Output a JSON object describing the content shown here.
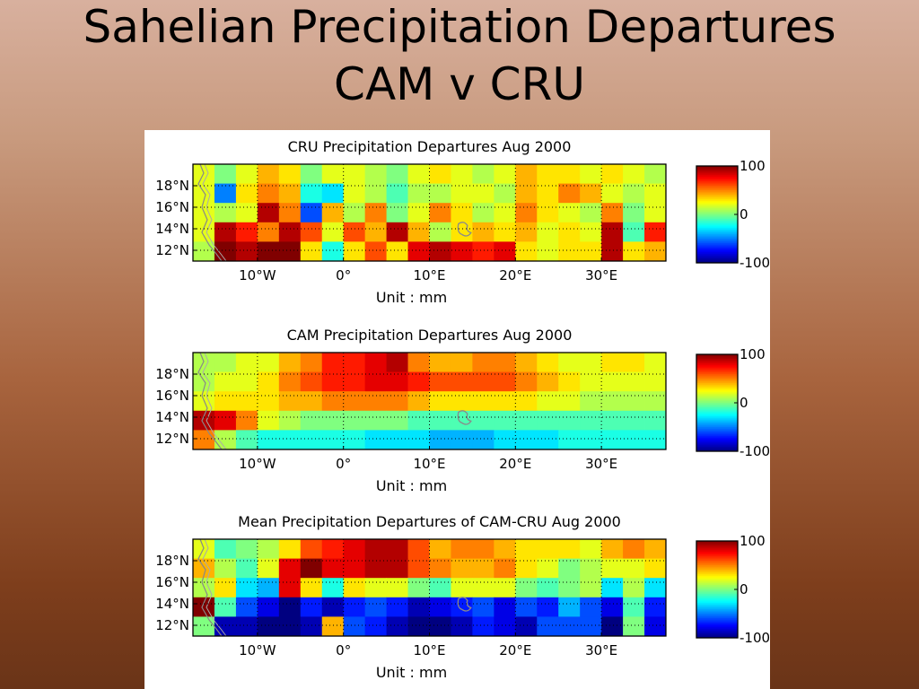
{
  "slide": {
    "title_line1": "Sahelian Precipitation Departures",
    "title_line2": "CAM v CRU"
  },
  "chart_data": [
    {
      "type": "heatmap",
      "title": "CRU Precipitation Departures  Aug 2000",
      "xlabel": "Unit : mm",
      "x_ticks": [
        "10°W",
        "0°",
        "10°E",
        "20°E",
        "30°E"
      ],
      "x_tick_values": [
        -10,
        0,
        10,
        20,
        30
      ],
      "y_ticks": [
        "18°N",
        "16°N",
        "14°N",
        "12°N"
      ],
      "y_tick_values": [
        18,
        16,
        14,
        12
      ],
      "xlim": [
        -17.5,
        37.5
      ],
      "ylim": [
        11,
        20
      ],
      "colorbar": {
        "min": -100,
        "max": 100,
        "ticks": [
          "100",
          "0",
          "-100"
        ]
      },
      "grid": true,
      "values": [
        [
          20,
          0,
          20,
          40,
          30,
          0,
          20,
          20,
          10,
          0,
          20,
          30,
          20,
          10,
          20,
          40,
          30,
          30,
          20,
          30,
          20,
          10
        ],
        [
          20,
          -50,
          30,
          50,
          40,
          -20,
          -30,
          20,
          10,
          -10,
          10,
          10,
          20,
          20,
          10,
          40,
          30,
          50,
          40,
          20,
          10,
          20
        ],
        [
          20,
          10,
          20,
          90,
          50,
          -60,
          40,
          10,
          50,
          0,
          20,
          50,
          30,
          10,
          20,
          50,
          30,
          20,
          10,
          50,
          0,
          20
        ],
        [
          20,
          90,
          70,
          50,
          90,
          60,
          20,
          60,
          40,
          90,
          40,
          10,
          30,
          40,
          30,
          40,
          20,
          30,
          20,
          90,
          -10,
          70
        ],
        [
          10,
          100,
          90,
          100,
          100,
          30,
          -20,
          30,
          60,
          30,
          80,
          90,
          80,
          70,
          80,
          30,
          20,
          30,
          30,
          90,
          30,
          40
        ]
      ]
    },
    {
      "type": "heatmap",
      "title": "CAM Precipitation Departures  Aug 2000",
      "xlabel": "Unit : mm",
      "x_ticks": [
        "10°W",
        "0°",
        "10°E",
        "20°E",
        "30°E"
      ],
      "x_tick_values": [
        -10,
        0,
        10,
        20,
        30
      ],
      "y_ticks": [
        "18°N",
        "16°N",
        "14°N",
        "12°N"
      ],
      "y_tick_values": [
        18,
        16,
        14,
        12
      ],
      "xlim": [
        -17.5,
        37.5
      ],
      "ylim": [
        11,
        20
      ],
      "colorbar": {
        "min": -100,
        "max": 100,
        "ticks": [
          "100",
          "0",
          "-100"
        ]
      },
      "grid": true,
      "values": [
        [
          10,
          10,
          20,
          20,
          40,
          50,
          70,
          70,
          80,
          90,
          50,
          40,
          40,
          50,
          50,
          40,
          30,
          20,
          20,
          30,
          30,
          20
        ],
        [
          10,
          20,
          20,
          30,
          50,
          60,
          70,
          70,
          80,
          80,
          70,
          60,
          60,
          60,
          60,
          50,
          40,
          30,
          20,
          20,
          20,
          20
        ],
        [
          20,
          30,
          30,
          30,
          40,
          40,
          50,
          50,
          50,
          50,
          40,
          30,
          30,
          30,
          30,
          30,
          20,
          20,
          10,
          10,
          10,
          10
        ],
        [
          90,
          80,
          50,
          20,
          10,
          0,
          0,
          0,
          0,
          0,
          -10,
          -10,
          -10,
          -10,
          -10,
          -10,
          -10,
          -10,
          -10,
          -10,
          -10,
          -10
        ],
        [
          50,
          10,
          -10,
          -20,
          -20,
          -20,
          -20,
          -20,
          -30,
          -30,
          -30,
          -40,
          -40,
          -40,
          -30,
          -30,
          -30,
          -20,
          -20,
          -20,
          -20,
          -20
        ]
      ]
    },
    {
      "type": "heatmap",
      "title": "Mean Precipitation Departures of CAM-CRU  Aug 2000",
      "xlabel": "Unit : mm",
      "x_ticks": [
        "10°W",
        "0°",
        "10°E",
        "20°E",
        "30°E"
      ],
      "x_tick_values": [
        -10,
        0,
        10,
        20,
        30
      ],
      "y_ticks": [
        "18°N",
        "16°N",
        "14°N",
        "12°N"
      ],
      "y_tick_values": [
        18,
        16,
        14,
        12
      ],
      "xlim": [
        -17.5,
        37.5
      ],
      "ylim": [
        11,
        20
      ],
      "colorbar": {
        "min": -100,
        "max": 100,
        "ticks": [
          "100",
          "0",
          "-100"
        ]
      },
      "grid": true,
      "values": [
        [
          20,
          -10,
          0,
          10,
          30,
          60,
          70,
          80,
          90,
          90,
          60,
          40,
          50,
          50,
          40,
          30,
          30,
          30,
          20,
          40,
          50,
          40
        ],
        [
          40,
          10,
          -10,
          20,
          80,
          100,
          80,
          80,
          90,
          90,
          60,
          50,
          40,
          40,
          50,
          30,
          20,
          0,
          10,
          20,
          20,
          30
        ],
        [
          10,
          30,
          -30,
          -40,
          80,
          30,
          -20,
          30,
          20,
          20,
          0,
          -10,
          20,
          20,
          20,
          0,
          -10,
          0,
          10,
          -30,
          10,
          -30
        ],
        [
          100,
          -10,
          -60,
          -80,
          -100,
          -70,
          -90,
          -70,
          -60,
          -70,
          -90,
          -80,
          -70,
          -60,
          -80,
          -60,
          -70,
          -40,
          -60,
          -80,
          -10,
          -70
        ],
        [
          0,
          -90,
          -90,
          -100,
          -100,
          -90,
          40,
          -60,
          -70,
          -90,
          -100,
          -100,
          -90,
          -70,
          -80,
          -90,
          -60,
          -60,
          -60,
          -100,
          0,
          -80
        ]
      ]
    }
  ]
}
